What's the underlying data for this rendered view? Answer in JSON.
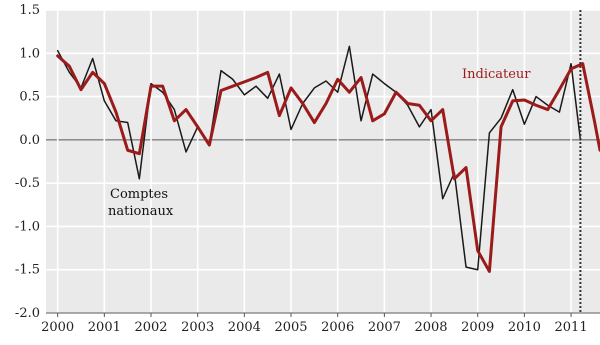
{
  "chart_data": {
    "type": "line",
    "title": "",
    "xlabel": "",
    "ylabel": "",
    "xlim": [
      1999.75,
      2011.62
    ],
    "ylim": [
      -2.0,
      1.5
    ],
    "y_ticks": [
      1.5,
      1.0,
      0.5,
      0.0,
      -0.5,
      -1.0,
      -1.5,
      -2.0
    ],
    "y_tick_labels": [
      "1.5",
      "1.0",
      "0.5",
      "0.0",
      "-0.5",
      "-1.0",
      "-1.5",
      "-2.0"
    ],
    "x_tick_labels": [
      "2000",
      "2001",
      "2002",
      "2003",
      "2004",
      "2005",
      "2006",
      "2007",
      "2008",
      "2009",
      "2010",
      "2011"
    ],
    "grid": true,
    "plot_background": "#eaeaea",
    "vertical_marker": {
      "x": 2011.2,
      "style": "dotted"
    },
    "annotations": [
      {
        "text": "Indicateur",
        "color": "#9b1b1b"
      },
      {
        "text": "Comptes",
        "color": "#111111"
      },
      {
        "text": "nationaux",
        "color": "#111111"
      }
    ],
    "series": [
      {
        "name": "Comptes nationaux",
        "color": "#1a1a1a",
        "width": 1.5,
        "points": [
          [
            2000.0,
            1.03
          ],
          [
            2000.25,
            0.78
          ],
          [
            2000.5,
            0.6
          ],
          [
            2000.75,
            0.94
          ],
          [
            2001.0,
            0.45
          ],
          [
            2001.25,
            0.22
          ],
          [
            2001.5,
            0.2
          ],
          [
            2001.75,
            -0.45
          ],
          [
            2002.0,
            0.65
          ],
          [
            2002.25,
            0.55
          ],
          [
            2002.5,
            0.35
          ],
          [
            2002.75,
            -0.14
          ],
          [
            2003.0,
            0.15
          ],
          [
            2003.25,
            -0.05
          ],
          [
            2003.5,
            0.8
          ],
          [
            2003.75,
            0.7
          ],
          [
            2004.0,
            0.52
          ],
          [
            2004.25,
            0.62
          ],
          [
            2004.5,
            0.48
          ],
          [
            2004.75,
            0.76
          ],
          [
            2005.0,
            0.12
          ],
          [
            2005.25,
            0.42
          ],
          [
            2005.5,
            0.6
          ],
          [
            2005.75,
            0.68
          ],
          [
            2006.0,
            0.55
          ],
          [
            2006.25,
            1.08
          ],
          [
            2006.5,
            0.22
          ],
          [
            2006.75,
            0.76
          ],
          [
            2007.0,
            0.65
          ],
          [
            2007.25,
            0.55
          ],
          [
            2007.5,
            0.4
          ],
          [
            2007.75,
            0.15
          ],
          [
            2008.0,
            0.35
          ],
          [
            2008.25,
            -0.68
          ],
          [
            2008.5,
            -0.38
          ],
          [
            2008.75,
            -1.47
          ],
          [
            2009.0,
            -1.5
          ],
          [
            2009.25,
            0.08
          ],
          [
            2009.5,
            0.25
          ],
          [
            2009.75,
            0.58
          ],
          [
            2010.0,
            0.18
          ],
          [
            2010.25,
            0.5
          ],
          [
            2010.5,
            0.4
          ],
          [
            2010.75,
            0.32
          ],
          [
            2011.0,
            0.88
          ],
          [
            2011.2,
            0.0
          ]
        ]
      },
      {
        "name": "Indicateur",
        "color": "#9b1b1b",
        "width": 3,
        "points": [
          [
            2000.0,
            0.97
          ],
          [
            2000.25,
            0.85
          ],
          [
            2000.5,
            0.58
          ],
          [
            2000.75,
            0.78
          ],
          [
            2001.0,
            0.65
          ],
          [
            2001.25,
            0.32
          ],
          [
            2001.5,
            -0.12
          ],
          [
            2001.75,
            -0.16
          ],
          [
            2002.0,
            0.62
          ],
          [
            2002.25,
            0.62
          ],
          [
            2002.5,
            0.22
          ],
          [
            2002.75,
            0.35
          ],
          [
            2003.0,
            0.15
          ],
          [
            2003.25,
            -0.06
          ],
          [
            2003.5,
            0.57
          ],
          [
            2003.75,
            0.62
          ],
          [
            2004.0,
            0.67
          ],
          [
            2004.25,
            0.72
          ],
          [
            2004.5,
            0.78
          ],
          [
            2004.75,
            0.28
          ],
          [
            2005.0,
            0.6
          ],
          [
            2005.25,
            0.42
          ],
          [
            2005.5,
            0.2
          ],
          [
            2005.75,
            0.42
          ],
          [
            2006.0,
            0.7
          ],
          [
            2006.25,
            0.55
          ],
          [
            2006.5,
            0.72
          ],
          [
            2006.75,
            0.22
          ],
          [
            2007.0,
            0.3
          ],
          [
            2007.25,
            0.55
          ],
          [
            2007.5,
            0.42
          ],
          [
            2007.75,
            0.4
          ],
          [
            2008.0,
            0.22
          ],
          [
            2008.25,
            0.35
          ],
          [
            2008.5,
            -0.45
          ],
          [
            2008.75,
            -0.32
          ],
          [
            2009.0,
            -1.28
          ],
          [
            2009.25,
            -1.52
          ],
          [
            2009.5,
            0.15
          ],
          [
            2009.75,
            0.45
          ],
          [
            2010.0,
            0.46
          ],
          [
            2010.25,
            0.4
          ],
          [
            2010.5,
            0.35
          ],
          [
            2010.75,
            0.58
          ],
          [
            2011.0,
            0.82
          ],
          [
            2011.25,
            0.88
          ],
          [
            2011.5,
            0.22
          ],
          [
            2011.62,
            -0.12
          ]
        ]
      }
    ]
  }
}
